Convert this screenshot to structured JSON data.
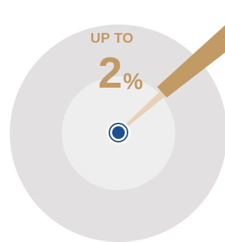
{
  "headline": {
    "prefix": "UP TO",
    "value": "2",
    "unit": "%"
  },
  "colors": {
    "background": "#ffffff",
    "outer_ring": "#e2e0e0",
    "inner_circle": "#efeeee",
    "accent_gold": "#c29a63",
    "needle_light": "#e7d2b8",
    "target_dot": "#1d4f93"
  },
  "icons": {
    "center": "target-dot-icon",
    "pointer": "needle-pointer-icon"
  }
}
